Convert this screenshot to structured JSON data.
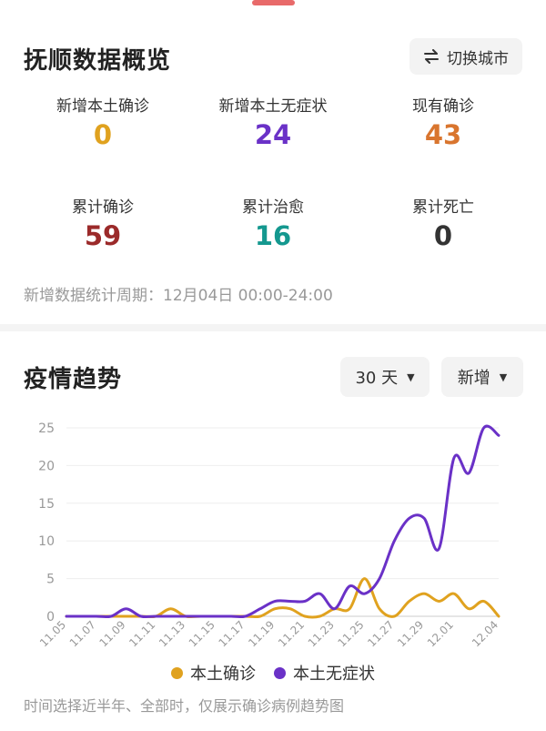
{
  "overview": {
    "title": "抚顺数据概览",
    "switch_label": "切换城市",
    "stats": [
      {
        "label": "新增本土确诊",
        "value": "0",
        "color": "#e0a21f"
      },
      {
        "label": "新增本土无症状",
        "value": "24",
        "color": "#6a31c7"
      },
      {
        "label": "现有确诊",
        "value": "43",
        "color": "#d9752e"
      },
      {
        "label": "累计确诊",
        "value": "59",
        "color": "#9b2a2a"
      },
      {
        "label": "累计治愈",
        "value": "16",
        "color": "#14988f"
      },
      {
        "label": "累计死亡",
        "value": "0",
        "color": "#333333"
      }
    ],
    "period": "新增数据统计周期：12月04日 00:00-24:00"
  },
  "trend": {
    "title": "疫情趋势",
    "range_label": "30 天",
    "mode_label": "新增",
    "legend": [
      "本土确诊",
      "本土无症状"
    ],
    "note": "时间选择近半年、全部时，仅展示确诊病例趋势图"
  },
  "chart_data": {
    "type": "line",
    "x_tick_labels": [
      "11.05",
      "11.07",
      "11.09",
      "11.11",
      "11.13",
      "11.15",
      "11.17",
      "11.19",
      "11.21",
      "11.23",
      "11.25",
      "11.27",
      "11.29",
      "12.01",
      "12.04"
    ],
    "x": [
      "11.05",
      "11.06",
      "11.07",
      "11.08",
      "11.09",
      "11.10",
      "11.11",
      "11.12",
      "11.13",
      "11.14",
      "11.15",
      "11.16",
      "11.17",
      "11.18",
      "11.19",
      "11.20",
      "11.21",
      "11.22",
      "11.23",
      "11.24",
      "11.25",
      "11.26",
      "11.27",
      "11.28",
      "11.29",
      "11.30",
      "12.01",
      "12.02",
      "12.03",
      "12.04"
    ],
    "series": [
      {
        "name": "本土确诊",
        "color": "#e0a21f",
        "values": [
          0,
          0,
          0,
          0,
          0,
          0,
          0,
          1,
          0,
          0,
          0,
          0,
          0,
          0,
          1,
          1,
          0,
          0,
          1,
          1,
          5,
          1,
          0,
          2,
          3,
          2,
          3,
          1,
          2,
          0
        ]
      },
      {
        "name": "本土无症状",
        "color": "#6a31c7",
        "values": [
          0,
          0,
          0,
          0,
          1,
          0,
          0,
          0,
          0,
          0,
          0,
          0,
          0,
          1,
          2,
          2,
          2,
          3,
          1,
          4,
          3,
          5,
          10,
          13,
          13,
          9,
          21,
          19,
          25,
          24
        ]
      }
    ],
    "ylim": [
      0,
      25
    ],
    "y_ticks": [
      0,
      5,
      10,
      15,
      20,
      25
    ],
    "grid": true,
    "legend_position": "bottom-center"
  }
}
